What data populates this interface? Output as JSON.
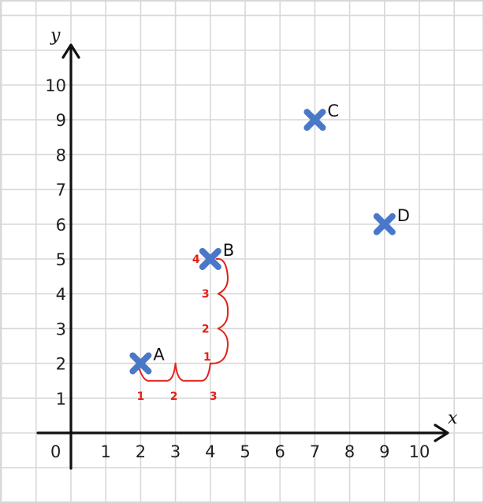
{
  "axes": {
    "x_name": "x",
    "y_name": "y",
    "origin_label": "0",
    "x_ticks": [
      "1",
      "2",
      "3",
      "4",
      "5",
      "6",
      "7",
      "8",
      "9",
      "10"
    ],
    "y_ticks": [
      "1",
      "2",
      "3",
      "4",
      "5",
      "6",
      "7",
      "8",
      "9",
      "10"
    ]
  },
  "points": [
    {
      "label": "A",
      "x": 2,
      "y": 2
    },
    {
      "label": "B",
      "x": 4,
      "y": 5
    },
    {
      "label": "C",
      "x": 7,
      "y": 9
    },
    {
      "label": "D",
      "x": 9,
      "y": 6
    }
  ],
  "annotations": {
    "horizontal_counts": [
      "1",
      "2",
      "3"
    ],
    "vertical_counts": [
      "1",
      "2",
      "3",
      "4"
    ]
  },
  "colors": {
    "point": "#4a78c8",
    "annotation": "#e2231a",
    "grid": "#d8d8d8",
    "axis": "#111111"
  }
}
